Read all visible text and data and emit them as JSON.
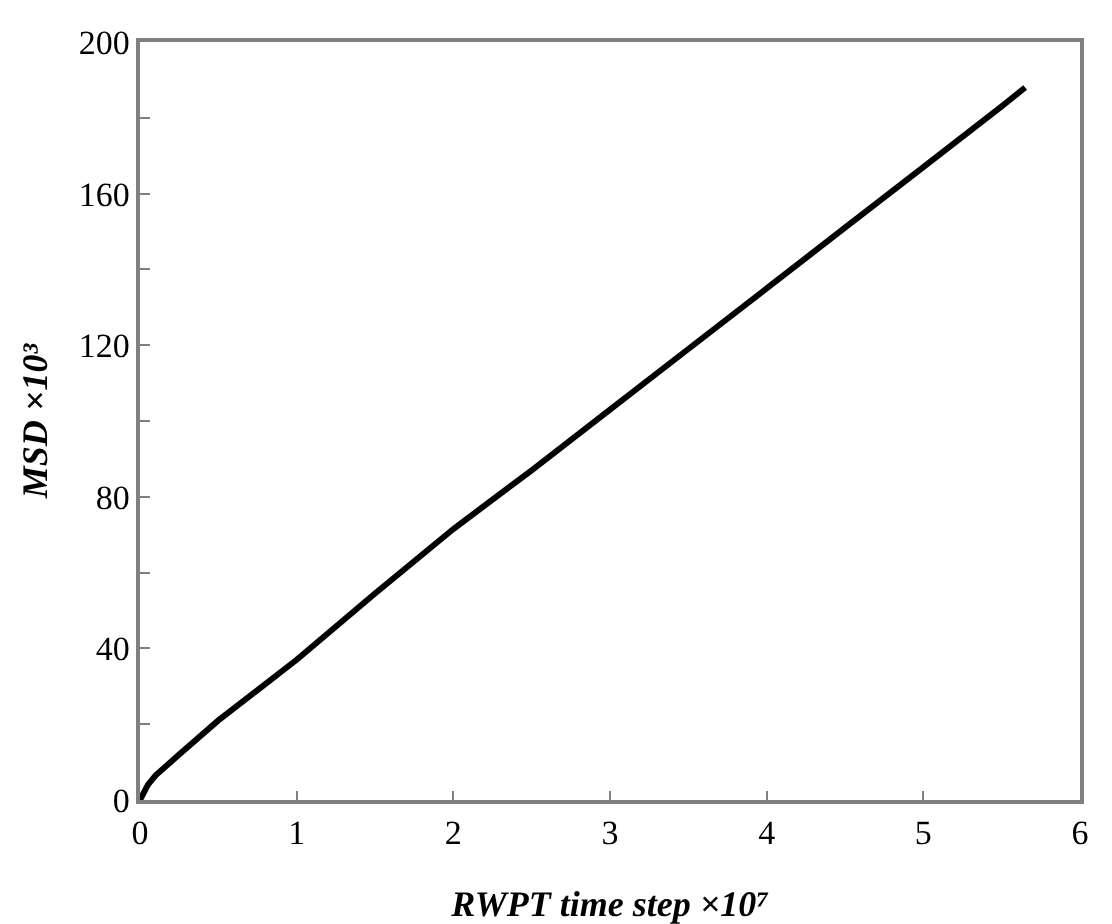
{
  "chart_data": {
    "type": "line",
    "xlabel": "RWPT time step ×10⁷",
    "ylabel": "MSD ×10³",
    "x": [
      0,
      0.05,
      0.1,
      0.25,
      0.5,
      0.75,
      1,
      1.5,
      2,
      2.5,
      3,
      3.5,
      4,
      4.5,
      5,
      5.5,
      5.65
    ],
    "series": [
      {
        "color": "#000000",
        "values": [
          0,
          4,
          6.5,
          12,
          21,
          29,
          37,
          54.5,
          71.5,
          87,
          103,
          119,
          135,
          151,
          167,
          183,
          188
        ]
      }
    ],
    "xlim": [
      0,
      6
    ],
    "xticks": [
      0,
      1,
      2,
      3,
      4,
      5,
      6
    ],
    "ylim": [
      0,
      200
    ],
    "yticks": [
      0,
      {
        "value": 20,
        "label": null
      },
      40,
      {
        "value": 60,
        "label": null
      },
      80,
      {
        "value": 100,
        "label": null
      },
      120,
      {
        "value": 140,
        "label": null
      },
      160,
      {
        "value": 180,
        "label": null
      },
      200
    ],
    "marker": "none",
    "line_style": "solid"
  }
}
